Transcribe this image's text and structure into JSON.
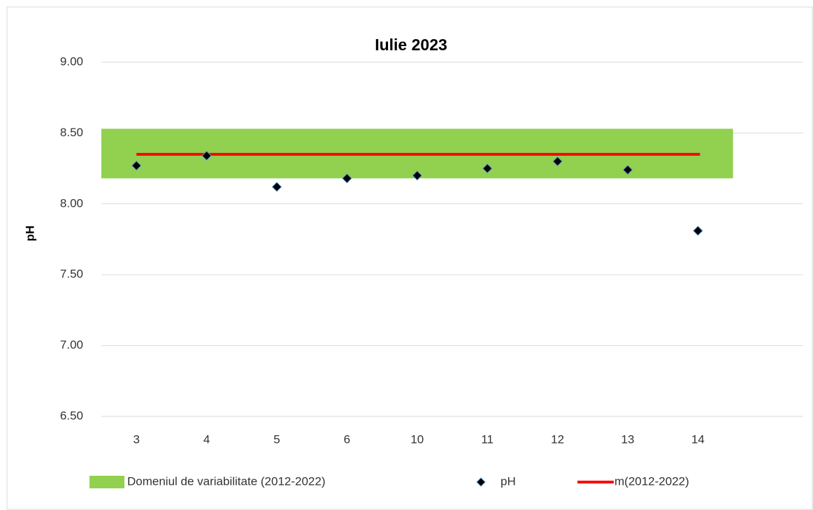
{
  "chart_data": {
    "type": "scatter",
    "title": "Iulie 2023",
    "y_label": "pH",
    "categories": [
      "3",
      "4",
      "5",
      "6",
      "10",
      "11",
      "12",
      "13",
      "14",
      null
    ],
    "series": [
      {
        "name": "Domeniul de variabilitate (2012-2022)",
        "color": "#92d050",
        "low": 8.18,
        "high": 8.53
      },
      {
        "name": "pH",
        "color": "#000000",
        "values": [
          8.27,
          8.34,
          8.12,
          8.18,
          8.2,
          8.25,
          8.3,
          8.24,
          7.81,
          null
        ]
      },
      {
        "name": "m(2012-2022)",
        "color": "#ff0000",
        "value": 8.35
      }
    ],
    "ylim": [
      6.5,
      9.0
    ],
    "yticks": [
      {
        "value": 6.5,
        "label": "6.50"
      },
      {
        "value": 7.0,
        "label": "7.00"
      },
      {
        "value": 7.5,
        "label": "7.50"
      },
      {
        "value": 8.0,
        "label": "8.00"
      },
      {
        "value": 8.5,
        "label": "8.50"
      },
      {
        "value": 9.0,
        "label": "9.00"
      }
    ],
    "grid": true,
    "legend": "bottom"
  }
}
